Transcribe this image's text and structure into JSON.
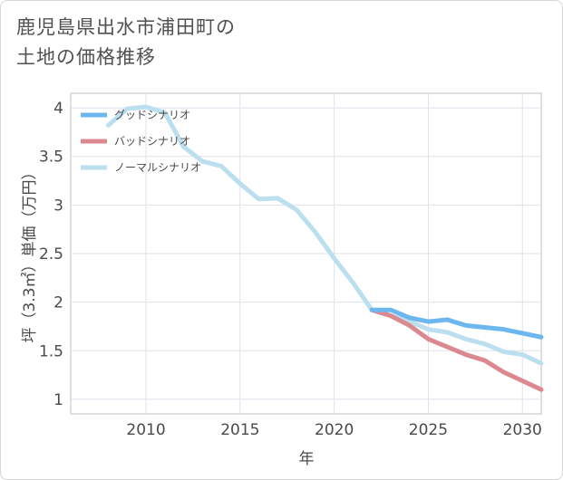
{
  "title_lines": [
    "鹿児島県出水市浦田町の",
    "土地の価格推移"
  ],
  "chart_data": {
    "type": "line",
    "xlabel": "年",
    "ylabel": "坪（3.3㎡）単価（万円）",
    "xlim": [
      2006,
      2031
    ],
    "ylim": [
      0.85,
      4.15
    ],
    "xticks": [
      2010,
      2015,
      2020,
      2025,
      2030
    ],
    "yticks": [
      1,
      1.5,
      2,
      2.5,
      3,
      3.5,
      4
    ],
    "legend_position": "top-left",
    "grid": true,
    "series": [
      {
        "name": "グッドシナリオ",
        "color": "#6cb8ee",
        "x": [
          2022,
          2023,
          2024,
          2025,
          2026,
          2027,
          2028,
          2029,
          2030,
          2031
        ],
        "y": [
          1.92,
          1.92,
          1.84,
          1.8,
          1.82,
          1.76,
          1.74,
          1.72,
          1.68,
          1.64
        ]
      },
      {
        "name": "バッドシナリオ",
        "color": "#dc8890",
        "x": [
          2022,
          2023,
          2024,
          2025,
          2026,
          2027,
          2028,
          2029,
          2030,
          2031
        ],
        "y": [
          1.92,
          1.86,
          1.76,
          1.62,
          1.54,
          1.46,
          1.4,
          1.28,
          1.19,
          1.1
        ]
      },
      {
        "name": "ノーマルシナリオ",
        "color": "#bcdff0",
        "x": [
          2008,
          2009,
          2010,
          2011,
          2012,
          2013,
          2014,
          2015,
          2016,
          2017,
          2018,
          2019,
          2020,
          2021,
          2022,
          2023,
          2024,
          2025,
          2026,
          2027,
          2028,
          2029,
          2030,
          2031
        ],
        "y": [
          3.82,
          3.99,
          4.01,
          3.95,
          3.6,
          3.45,
          3.4,
          3.22,
          3.06,
          3.07,
          2.95,
          2.72,
          2.45,
          2.2,
          1.92,
          1.86,
          1.8,
          1.72,
          1.69,
          1.62,
          1.57,
          1.49,
          1.46,
          1.37
        ]
      }
    ]
  }
}
